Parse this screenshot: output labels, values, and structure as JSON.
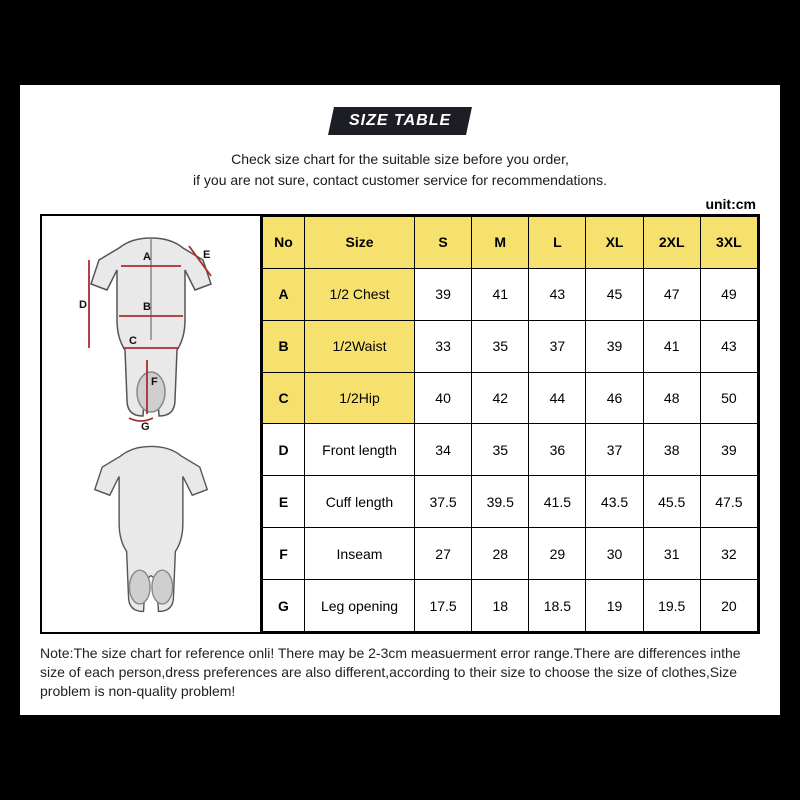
{
  "title": "SIZE TABLE",
  "subtitle_line1": "Check size chart for the suitable size before you order,",
  "subtitle_line2": "if you are not sure, contact customer service for recommendations.",
  "unit_label": "unit:cm",
  "diagram": {
    "labels": [
      "A",
      "B",
      "C",
      "D",
      "E",
      "F",
      "G"
    ],
    "line_color": "#a82e2e"
  },
  "table": {
    "header_bg": "#f7e16e",
    "yellow_bg": "#f7e16e",
    "columns": [
      "No",
      "Size",
      "S",
      "M",
      "L",
      "XL",
      "2XL",
      "3XL"
    ],
    "rows": [
      {
        "code": "A",
        "label": "1/2 Chest",
        "values": [
          "39",
          "41",
          "43",
          "45",
          "47",
          "49"
        ],
        "highlight": true
      },
      {
        "code": "B",
        "label": "1/2Waist",
        "values": [
          "33",
          "35",
          "37",
          "39",
          "41",
          "43"
        ],
        "highlight": true
      },
      {
        "code": "C",
        "label": "1/2Hip",
        "values": [
          "40",
          "42",
          "44",
          "46",
          "48",
          "50"
        ],
        "highlight": true
      },
      {
        "code": "D",
        "label": "Front length",
        "values": [
          "34",
          "35",
          "36",
          "37",
          "38",
          "39"
        ],
        "highlight": false
      },
      {
        "code": "E",
        "label": "Cuff length",
        "values": [
          "37.5",
          "39.5",
          "41.5",
          "43.5",
          "45.5",
          "47.5"
        ],
        "highlight": false
      },
      {
        "code": "F",
        "label": "Inseam",
        "values": [
          "27",
          "28",
          "29",
          "30",
          "31",
          "32"
        ],
        "highlight": false
      },
      {
        "code": "G",
        "label": "Leg opening",
        "values": [
          "17.5",
          "18",
          "18.5",
          "19",
          "19.5",
          "20"
        ],
        "highlight": false
      }
    ]
  },
  "note": "Note:The size chart for reference onli! There may be 2-3cm measuerment error range.There are differences inthe size of each person,dress preferences are also different,according to their size to choose the size of clothes,Size problem is non-quality problem!"
}
